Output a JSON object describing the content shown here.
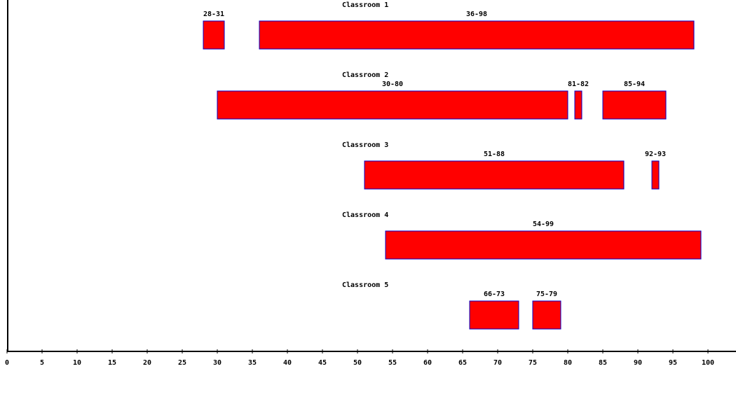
{
  "chart_data": {
    "type": "bar",
    "orientation": "horizontal-ranges",
    "xlim": [
      0,
      100
    ],
    "x_ticks": [
      0,
      5,
      10,
      15,
      20,
      25,
      30,
      35,
      40,
      45,
      50,
      55,
      60,
      65,
      70,
      75,
      80,
      85,
      90,
      95,
      100
    ],
    "grid": false,
    "colors": {
      "bar_fill": "#ff0000",
      "bar_stroke": "#0000cc",
      "axis": "#000000"
    },
    "rows": [
      {
        "name": "Classroom 1",
        "intervals": [
          {
            "start": 28,
            "end": 31,
            "label": "28-31"
          },
          {
            "start": 36,
            "end": 98,
            "label": "36-98"
          }
        ]
      },
      {
        "name": "Classroom 2",
        "intervals": [
          {
            "start": 30,
            "end": 80,
            "label": "30-80"
          },
          {
            "start": 81,
            "end": 82,
            "label": "81-82"
          },
          {
            "start": 85,
            "end": 94,
            "label": "85-94"
          }
        ]
      },
      {
        "name": "Classroom 3",
        "intervals": [
          {
            "start": 51,
            "end": 88,
            "label": "51-88"
          },
          {
            "start": 92,
            "end": 93,
            "label": "92-93"
          }
        ]
      },
      {
        "name": "Classroom 4",
        "intervals": [
          {
            "start": 54,
            "end": 99,
            "label": "54-99"
          }
        ]
      },
      {
        "name": "Classroom 5",
        "intervals": [
          {
            "start": 66,
            "end": 73,
            "label": "66-73"
          },
          {
            "start": 75,
            "end": 79,
            "label": "75-79"
          }
        ]
      }
    ]
  }
}
